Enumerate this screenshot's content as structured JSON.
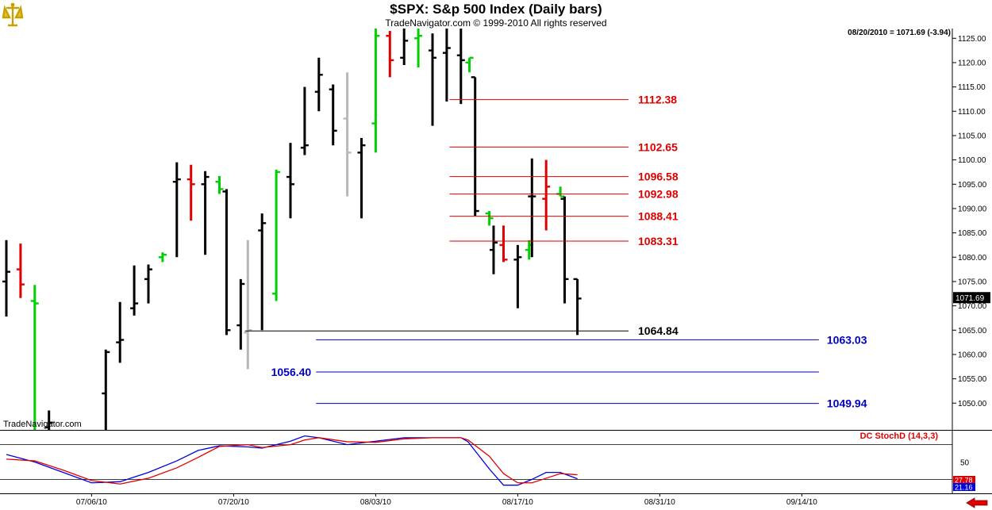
{
  "header": {
    "title": "$SPX:  S&p 500 Index  (Daily bars)",
    "copyright": "TradeNavigator.com © 1999-2010 All rights reserved",
    "quote": "08/20/2010 = 1071.69 (-3.94)",
    "watermark": "TradeNavigator.com"
  },
  "colors": {
    "bar_default": "#000000",
    "bar_up": "#00d000",
    "bar_down": "#e00000",
    "bar_gray": "#b8b8b8",
    "resistance": "#e00000",
    "support": "#0000c0",
    "stoch_k": "#0000e0",
    "stoch_d": "#e00000",
    "last_price_box": "#000000"
  },
  "chart_data": [
    {
      "type": "ohlc",
      "ylim": [
        1044.5,
        1127
      ],
      "yticks": [
        1050.0,
        1055.0,
        1060.0,
        1065.0,
        1070.0,
        1075.0,
        1080.0,
        1085.0,
        1090.0,
        1095.0,
        1100.0,
        1105.0,
        1110.0,
        1115.0,
        1120.0,
        1125.0
      ],
      "x_labels": [
        {
          "label": "07/06/10",
          "slot": 6
        },
        {
          "label": "07/20/10",
          "slot": 16
        },
        {
          "label": "08/03/10",
          "slot": 26
        },
        {
          "label": "08/17/10",
          "slot": 36
        },
        {
          "label": "08/31/10",
          "slot": 46
        },
        {
          "label": "09/14/10",
          "slot": 56
        }
      ],
      "bars": [
        {
          "slot": 0,
          "o": 1075.0,
          "h": 1083.5,
          "l": 1067.8,
          "c": 1077.0,
          "color": "default"
        },
        {
          "slot": 1,
          "o": 1077.5,
          "h": 1082.8,
          "l": 1071.6,
          "c": 1074.4,
          "color": "down"
        },
        {
          "slot": 2,
          "o": 1071.0,
          "h": 1074.3,
          "l": 1040.0,
          "c": 1070.5,
          "color": "up"
        },
        {
          "slot": 3,
          "o": 1045.0,
          "h": 1048.5,
          "l": 1038.0,
          "c": 1046.0,
          "color": "default"
        },
        {
          "slot": 7,
          "o": 1052.0,
          "h": 1061.0,
          "l": 1043.0,
          "c": 1060.5,
          "color": "default"
        },
        {
          "slot": 8,
          "o": 1062.5,
          "h": 1070.8,
          "l": 1058.3,
          "c": 1063.0,
          "color": "default"
        },
        {
          "slot": 9,
          "o": 1069.5,
          "h": 1078.3,
          "l": 1068.0,
          "c": 1070.5,
          "color": "default"
        },
        {
          "slot": 10,
          "o": 1075.5,
          "h": 1078.5,
          "l": 1070.5,
          "c": 1077.5,
          "color": "default"
        },
        {
          "slot": 11,
          "o": 1080.0,
          "h": 1081.0,
          "l": 1079.0,
          "c": 1080.5,
          "color": "up"
        },
        {
          "slot": 12,
          "o": 1095.5,
          "h": 1099.5,
          "l": 1080.0,
          "c": 1096.0,
          "color": "default"
        },
        {
          "slot": 13,
          "o": 1096.0,
          "h": 1099.0,
          "l": 1087.5,
          "c": 1095.0,
          "color": "down"
        },
        {
          "slot": 14,
          "o": 1095.0,
          "h": 1097.7,
          "l": 1080.5,
          "c": 1096.5,
          "color": "default"
        },
        {
          "slot": 15,
          "o": 1095.5,
          "h": 1096.7,
          "l": 1093.0,
          "c": 1094.0,
          "color": "up"
        },
        {
          "slot": 15.5,
          "o": 1093.5,
          "h": 1094.0,
          "l": 1064.0,
          "c": 1065.0,
          "color": "default"
        },
        {
          "slot": 16.5,
          "o": 1066.0,
          "h": 1075.5,
          "l": 1061.0,
          "c": 1074.5,
          "color": "default"
        },
        {
          "slot": 17,
          "o": 1064.5,
          "h": 1083.5,
          "l": 1057.0,
          "c": 1065.0,
          "color": "gray"
        },
        {
          "slot": 18,
          "o": 1085.5,
          "h": 1089.0,
          "l": 1065.0,
          "c": 1087.0,
          "color": "default"
        },
        {
          "slot": 19,
          "o": 1072.5,
          "h": 1098.0,
          "l": 1071.0,
          "c": 1097.5,
          "color": "up"
        },
        {
          "slot": 20,
          "o": 1096.5,
          "h": 1103.5,
          "l": 1088.0,
          "c": 1095.0,
          "color": "default"
        },
        {
          "slot": 21,
          "o": 1102.5,
          "h": 1115.0,
          "l": 1101.0,
          "c": 1103.0,
          "color": "default"
        },
        {
          "slot": 22,
          "o": 1114.0,
          "h": 1121.0,
          "l": 1110.0,
          "c": 1117.5,
          "color": "default"
        },
        {
          "slot": 23,
          "o": 1114.5,
          "h": 1115.5,
          "l": 1103.0,
          "c": 1106.0,
          "color": "default"
        },
        {
          "slot": 24,
          "o": 1108.5,
          "h": 1118.0,
          "l": 1092.5,
          "c": 1101.5,
          "color": "gray"
        },
        {
          "slot": 25,
          "o": 1101.5,
          "h": 1104.5,
          "l": 1088.0,
          "c": 1103.0,
          "color": "default"
        },
        {
          "slot": 26,
          "o": 1107.5,
          "h": 1127.0,
          "l": 1101.5,
          "c": 1125.5,
          "color": "up"
        },
        {
          "slot": 27,
          "o": 1125.5,
          "h": 1126.5,
          "l": 1117.0,
          "c": 1120.5,
          "color": "down"
        },
        {
          "slot": 28,
          "o": 1121.0,
          "h": 1127.0,
          "l": 1119.5,
          "c": 1124.5,
          "color": "default"
        },
        {
          "slot": 29,
          "o": 1125.0,
          "h": 1127.0,
          "l": 1119.0,
          "c": 1125.5,
          "color": "up"
        },
        {
          "slot": 30,
          "o": 1122.5,
          "h": 1126.0,
          "l": 1107.0,
          "c": 1121.0,
          "color": "default"
        },
        {
          "slot": 31,
          "o": 1122.0,
          "h": 1127.0,
          "l": 1112.0,
          "c": 1123.0,
          "color": "default"
        },
        {
          "slot": 32,
          "o": 1121.5,
          "h": 1127.0,
          "l": 1111.5,
          "c": 1120.5,
          "color": "default"
        },
        {
          "slot": 32.6,
          "o": 1120.0,
          "h": 1121.0,
          "l": 1118.0,
          "c": 1121.0,
          "color": "up"
        },
        {
          "slot": 33,
          "o": 1117.0,
          "h": 1117.0,
          "l": 1088.5,
          "c": 1089.5,
          "color": "default"
        },
        {
          "slot": 34,
          "o": 1089.0,
          "h": 1089.5,
          "l": 1086.5,
          "c": 1088.0,
          "color": "up"
        },
        {
          "slot": 34.3,
          "o": 1081.5,
          "h": 1086.5,
          "l": 1076.5,
          "c": 1083.0,
          "color": "default"
        },
        {
          "slot": 35,
          "o": 1082.5,
          "h": 1086.5,
          "l": 1079.0,
          "c": 1079.5,
          "color": "down"
        },
        {
          "slot": 36,
          "o": 1079.5,
          "h": 1082.5,
          "l": 1069.5,
          "c": 1080.0,
          "color": "default"
        },
        {
          "slot": 36.8,
          "o": 1081.5,
          "h": 1083.5,
          "l": 1079.5,
          "c": 1082.5,
          "color": "up"
        },
        {
          "slot": 37,
          "o": 1092.5,
          "h": 1100.3,
          "l": 1080.0,
          "c": 1092.5,
          "color": "default"
        },
        {
          "slot": 38,
          "o": 1092.0,
          "h": 1100.0,
          "l": 1085.5,
          "c": 1094.5,
          "color": "down"
        },
        {
          "slot": 39,
          "o": 1093.0,
          "h": 1094.5,
          "l": 1092.5,
          "c": 1092.5,
          "color": "up"
        },
        {
          "slot": 39.3,
          "o": 1092.0,
          "h": 1092.5,
          "l": 1070.5,
          "c": 1075.5,
          "color": "default"
        },
        {
          "slot": 40.2,
          "o": 1075.5,
          "h": 1075.5,
          "l": 1064.0,
          "c": 1071.5,
          "color": "default"
        }
      ],
      "lines": [
        {
          "value": 1112.38,
          "label": "1112.38",
          "kind": "resistance",
          "from": 31.2,
          "to": 43.8,
          "label_side": "right-inline"
        },
        {
          "value": 1102.65,
          "label": "1102.65",
          "kind": "resistance",
          "from": 31.2,
          "to": 43.8,
          "label_side": "right-inline"
        },
        {
          "value": 1096.58,
          "label": "1096.58",
          "kind": "resistance",
          "from": 31.2,
          "to": 43.8,
          "label_side": "right-inline"
        },
        {
          "value": 1092.98,
          "label": "1092.98",
          "kind": "resistance",
          "from": 31.2,
          "to": 43.8,
          "label_side": "right-inline"
        },
        {
          "value": 1088.41,
          "label": "1088.41",
          "kind": "resistance",
          "from": 31.2,
          "to": 43.8,
          "label_side": "right-inline"
        },
        {
          "value": 1083.31,
          "label": "1083.31",
          "kind": "resistance",
          "from": 31.2,
          "to": 43.8,
          "label_side": "right-inline"
        },
        {
          "value": 1064.84,
          "label": "1064.84",
          "kind": "pivot",
          "from": 16.8,
          "to": 43.8,
          "label_side": "right-inline"
        },
        {
          "value": 1063.03,
          "label": "1063.03",
          "kind": "support",
          "from": 21.8,
          "to": 57.2,
          "label_side": "right-outside"
        },
        {
          "value": 1056.4,
          "label": "1056.40",
          "kind": "support",
          "from": 21.8,
          "to": 57.2,
          "label_side": "left-outside"
        },
        {
          "value": 1049.94,
          "label": "1049.94",
          "kind": "support",
          "from": 21.8,
          "to": 57.2,
          "label_side": "right-outside"
        }
      ],
      "last_price": {
        "value": 1071.69,
        "label": "1071.69"
      }
    },
    {
      "type": "line",
      "indicator": "DC StochD (14,3,3)",
      "ylim": [
        0,
        100
      ],
      "ref_lines": [
        20,
        80
      ],
      "ytick_labels": [
        {
          "value": 50,
          "label": "50"
        }
      ],
      "last_values": [
        {
          "series": "d",
          "label": "27.78"
        },
        {
          "series": "k",
          "label": "21.16"
        }
      ],
      "series": [
        {
          "id": "k",
          "x": [
            0,
            2,
            4,
            6,
            8,
            10,
            12,
            13.5,
            15,
            17,
            18,
            20,
            21,
            22,
            24,
            26,
            28,
            30,
            32,
            32.5,
            34,
            35,
            36,
            37,
            38,
            39,
            40.2
          ],
          "values": [
            63,
            50,
            32,
            14,
            16,
            32,
            52,
            70,
            78,
            76,
            74,
            86,
            95,
            92,
            80,
            86,
            92,
            92,
            92,
            85,
            38,
            10,
            10,
            20,
            32,
            32,
            21
          ]
        },
        {
          "id": "d",
          "x": [
            0,
            2,
            4,
            6,
            8,
            10,
            12,
            13.5,
            15,
            17,
            18,
            20,
            21,
            22,
            24,
            26,
            28,
            30,
            32,
            32.5,
            34,
            35,
            36,
            37,
            38,
            39,
            40.2
          ],
          "values": [
            55,
            52,
            36,
            18,
            12,
            22,
            40,
            58,
            77,
            80,
            75,
            80,
            88,
            92,
            85,
            84,
            90,
            92,
            92,
            88,
            60,
            30,
            14,
            14,
            22,
            30,
            28
          ]
        }
      ]
    }
  ]
}
